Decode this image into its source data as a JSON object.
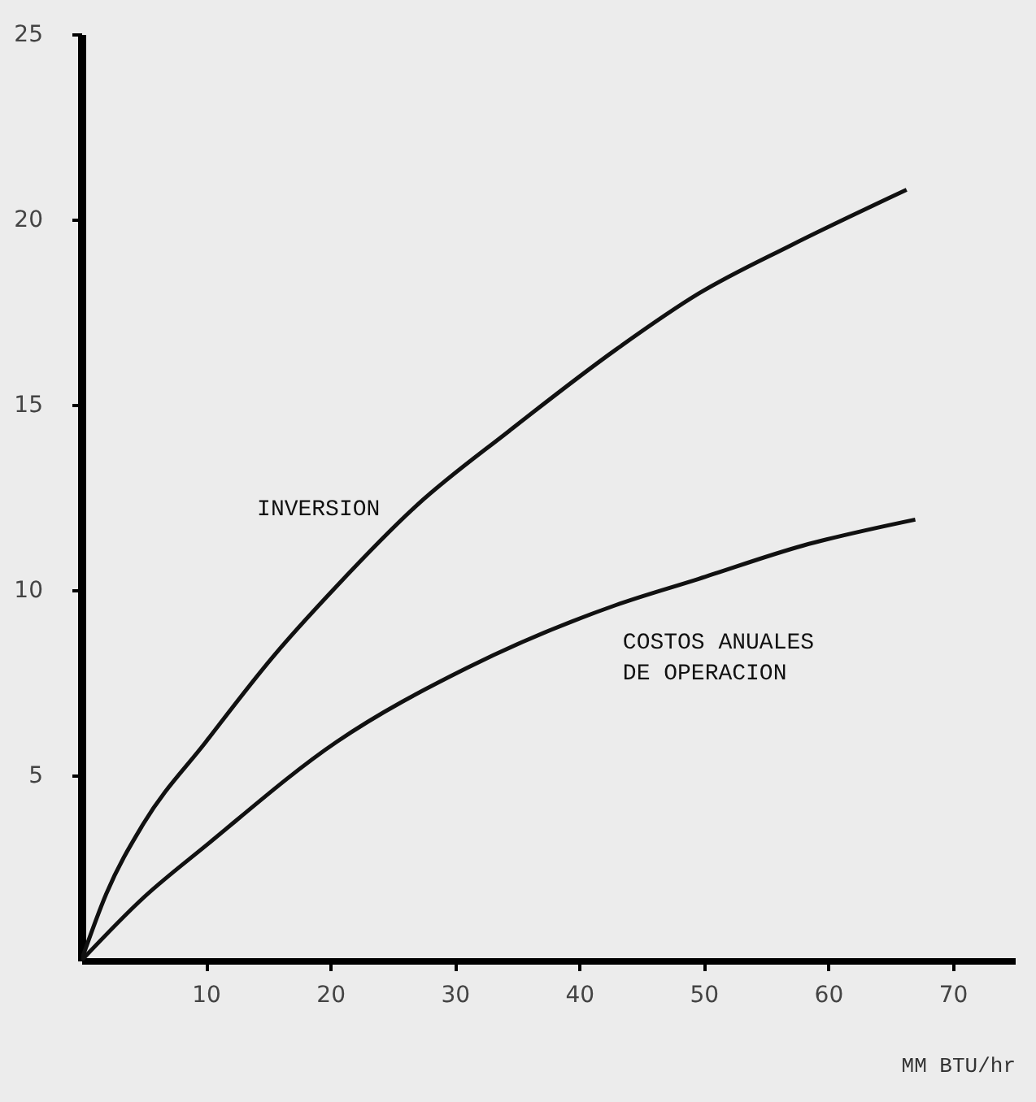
{
  "chart_data": {
    "type": "line",
    "xlabel": "MM BTU/hr",
    "xlim": [
      0,
      75
    ],
    "ylim": [
      0,
      25
    ],
    "xticks": [
      10,
      20,
      30,
      40,
      50,
      60,
      70
    ],
    "yticks": [
      5,
      10,
      15,
      20,
      25
    ],
    "grid": false,
    "legend": false,
    "marker": "none",
    "line_style": "solid",
    "series": [
      {
        "name": "INVERSION",
        "color": "#111111",
        "x": [
          0,
          2,
          5,
          10,
          15.4,
          20.5,
          27,
          34.4,
          43,
          49.6,
          57,
          66.3
        ],
        "values": [
          0,
          1.8,
          3.7,
          5.9,
          8.2,
          10.1,
          12.3,
          14.3,
          16.5,
          18.0,
          19.3,
          20.8
        ]
      },
      {
        "name": "COSTOS ANUALES\nDE OPERACION",
        "color": "#111111",
        "x": [
          0,
          5,
          10,
          20.5,
          31,
          43,
          49.6,
          58,
          67
        ],
        "values": [
          0,
          1.7,
          3.1,
          5.9,
          7.9,
          9.6,
          10.3,
          11.2,
          11.9
        ]
      }
    ]
  }
}
